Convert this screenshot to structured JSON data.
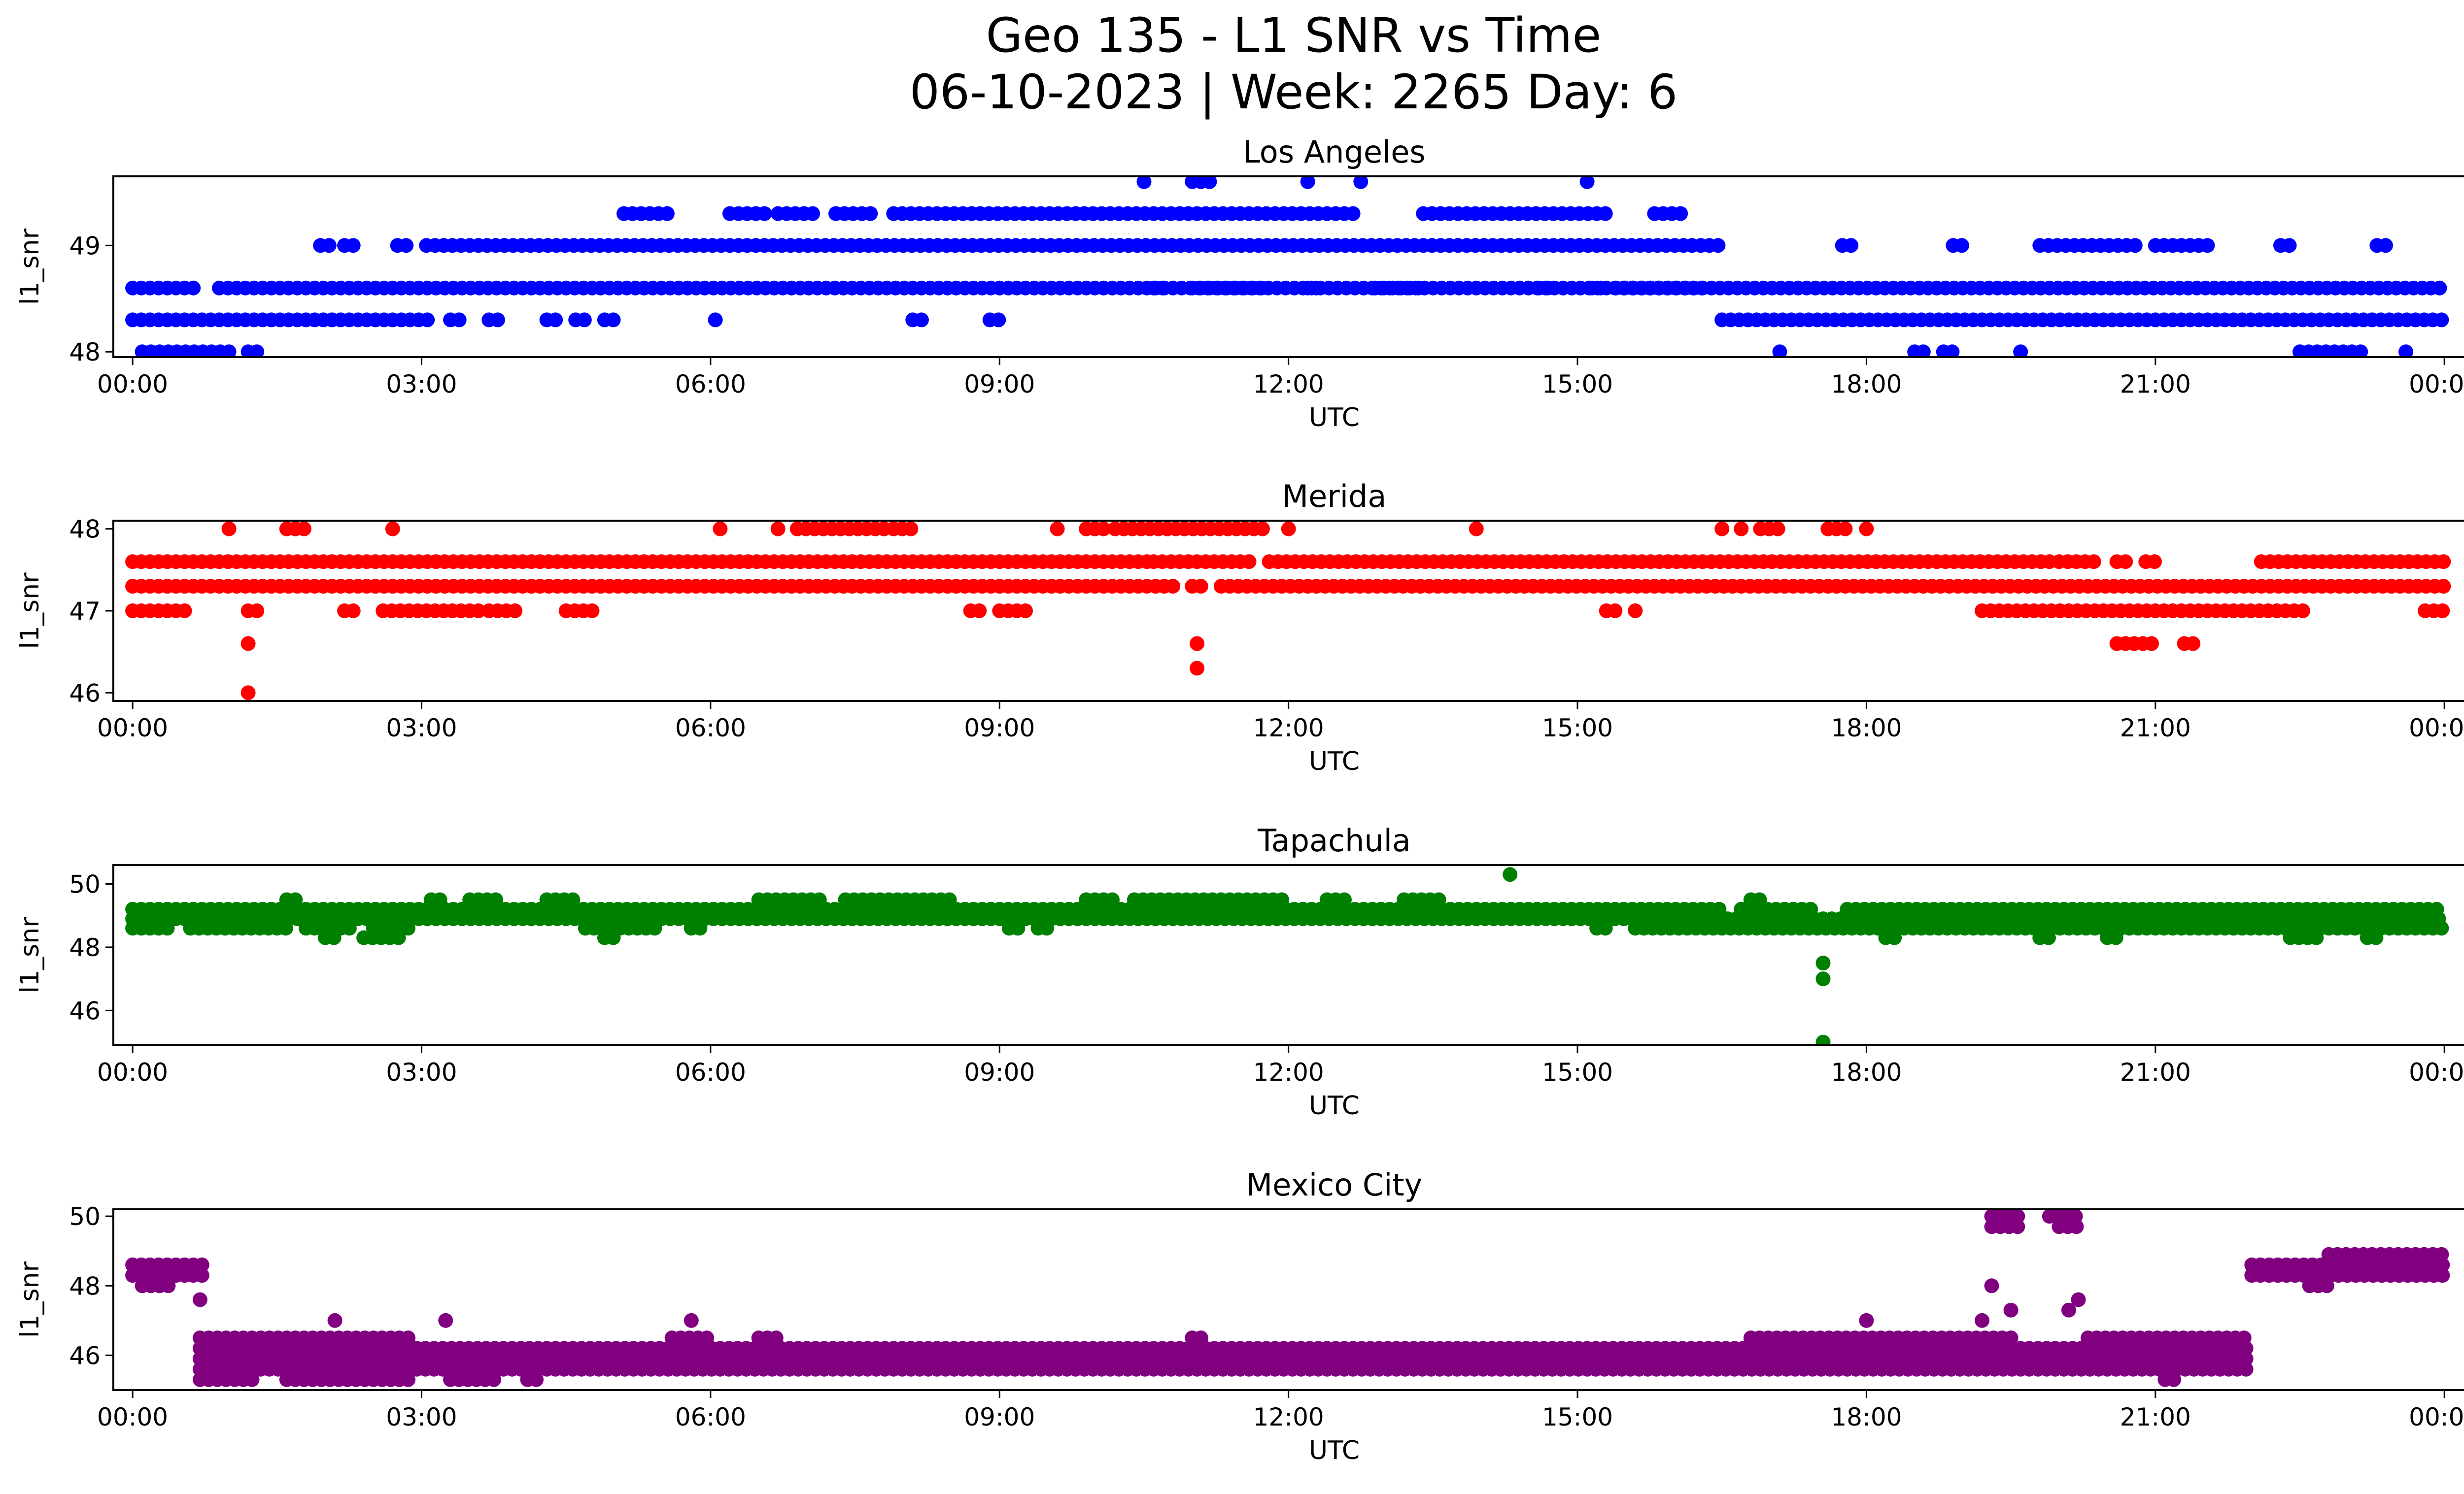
{
  "figure": {
    "title_line1": "Geo 135 - L1 SNR vs Time",
    "title_line2": "06-10-2023 | Week: 2265 Day: 6"
  },
  "chart_data": [
    {
      "type": "scatter",
      "title": "Los Angeles",
      "xlabel": "UTC",
      "ylabel": "l1_snr",
      "color": "#0000ff",
      "xlim": [
        "00:00",
        "24:00"
      ],
      "ylim": [
        47.95,
        49.65
      ],
      "x_ticks": [
        "00:00",
        "03:00",
        "06:00",
        "09:00",
        "12:00",
        "15:00",
        "18:00",
        "21:00",
        "00:00"
      ],
      "y_ticks": [
        48,
        49
      ],
      "bands": [
        {
          "y": 48.3,
          "segments": [
            [
              0.0,
              3.1
            ],
            [
              3.3,
              3.4
            ],
            [
              3.7,
              3.8
            ],
            [
              4.3,
              4.4
            ],
            [
              4.6,
              4.7
            ],
            [
              4.9,
              5.0
            ],
            [
              6.05,
              6.1
            ],
            [
              8.1,
              8.2
            ],
            [
              8.9,
              9.0
            ],
            [
              16.5,
              24.0
            ]
          ]
        },
        {
          "y": 48.6,
          "segments": [
            [
              0.0,
              0.7
            ],
            [
              0.9,
              16.3
            ],
            [
              10.6,
              10.7
            ],
            [
              11.0,
              11.8
            ],
            [
              12.2,
              12.3
            ],
            [
              12.9,
              13.4
            ],
            [
              14.6,
              14.7
            ],
            [
              15.15,
              15.25
            ],
            [
              15.4,
              24.0
            ]
          ]
        },
        {
          "y": 49.0,
          "segments": [
            [
              1.95,
              2.1
            ],
            [
              2.2,
              2.3
            ],
            [
              2.75,
              2.85
            ],
            [
              3.05,
              16.5
            ],
            [
              17.75,
              17.85
            ],
            [
              18.9,
              19.0
            ],
            [
              19.8,
              20.8
            ],
            [
              21.0,
              21.6
            ],
            [
              22.3,
              22.4
            ],
            [
              23.3,
              23.4
            ]
          ]
        },
        {
          "y": 49.3,
          "segments": [
            [
              5.1,
              5.6
            ],
            [
              6.2,
              6.6
            ],
            [
              6.7,
              7.1
            ],
            [
              7.3,
              7.7
            ],
            [
              7.9,
              12.7
            ],
            [
              13.4,
              15.3
            ],
            [
              15.8,
              16.1
            ]
          ]
        },
        {
          "y": 49.6,
          "segments": [
            [
              10.5,
              10.55
            ],
            [
              11.0,
              11.2
            ],
            [
              12.2,
              12.25
            ],
            [
              12.75,
              12.8
            ],
            [
              15.1,
              15.15
            ]
          ]
        },
        {
          "y": 48.0,
          "segments": [
            [
              0.1,
              1.0
            ],
            [
              1.2,
              1.3
            ],
            [
              17.1,
              17.15
            ],
            [
              18.5,
              18.6
            ],
            [
              18.8,
              18.9
            ],
            [
              19.6,
              19.65
            ],
            [
              22.5,
              23.2
            ],
            [
              23.6,
              23.65
            ]
          ]
        }
      ],
      "outliers": []
    },
    {
      "type": "scatter",
      "title": "Merida",
      "xlabel": "UTC",
      "ylabel": "l1_snr",
      "color": "#ff0000",
      "xlim": [
        "00:00",
        "24:00"
      ],
      "ylim": [
        45.9,
        48.1
      ],
      "x_ticks": [
        "00:00",
        "03:00",
        "06:00",
        "09:00",
        "12:00",
        "15:00",
        "18:00",
        "21:00",
        "00:00"
      ],
      "y_ticks": [
        46,
        47,
        48
      ],
      "bands": [
        {
          "y": 47.3,
          "segments": [
            [
              0.0,
              10.8
            ],
            [
              11.0,
              11.1
            ],
            [
              11.3,
              24.0
            ]
          ]
        },
        {
          "y": 47.6,
          "segments": [
            [
              0.0,
              10.6
            ],
            [
              10.6,
              11.6
            ],
            [
              11.8,
              19.9
            ],
            [
              20.0,
              20.4
            ],
            [
              20.6,
              20.7
            ],
            [
              20.9,
              21.0
            ],
            [
              22.1,
              24.0
            ]
          ]
        },
        {
          "y": 47.0,
          "segments": [
            [
              0.0,
              0.6
            ],
            [
              1.2,
              1.3
            ],
            [
              2.2,
              2.3
            ],
            [
              2.6,
              3.6
            ],
            [
              3.7,
              4.0
            ],
            [
              4.5,
              4.8
            ],
            [
              8.7,
              8.8
            ],
            [
              9.0,
              9.3
            ],
            [
              15.3,
              15.4
            ],
            [
              15.6,
              15.65
            ],
            [
              19.2,
              22.6
            ],
            [
              23.8,
              24.0
            ]
          ]
        },
        {
          "y": 48.0,
          "segments": [
            [
              1.0,
              1.05
            ],
            [
              1.6,
              1.8
            ],
            [
              2.7,
              2.75
            ],
            [
              6.1,
              6.15
            ],
            [
              6.7,
              6.75
            ],
            [
              6.9,
              7.8
            ],
            [
              7.9,
              8.1
            ],
            [
              9.6,
              9.65
            ],
            [
              9.9,
              10.1
            ],
            [
              10.2,
              11.8
            ],
            [
              12.0,
              12.05
            ],
            [
              13.95,
              14.0
            ],
            [
              16.5,
              16.55
            ],
            [
              16.7,
              16.75
            ],
            [
              16.9,
              17.1
            ],
            [
              17.6,
              17.8
            ],
            [
              18.0,
              18.05
            ]
          ]
        },
        {
          "y": 46.6,
          "segments": [
            [
              20.6,
              21.0
            ],
            [
              21.3,
              21.4
            ]
          ]
        }
      ],
      "outliers": [
        [
          1.2,
          46.6
        ],
        [
          1.2,
          46.0
        ],
        [
          11.05,
          46.6
        ],
        [
          11.05,
          46.3
        ]
      ]
    },
    {
      "type": "scatter",
      "title": "Tapachula",
      "xlabel": "UTC",
      "ylabel": "l1_snr",
      "color": "#008000",
      "xlim": [
        "00:00",
        "24:00"
      ],
      "ylim": [
        44.9,
        50.6
      ],
      "x_ticks": [
        "00:00",
        "03:00",
        "06:00",
        "09:00",
        "12:00",
        "15:00",
        "18:00",
        "21:00",
        "00:00"
      ],
      "y_ticks": [
        46,
        48,
        50
      ],
      "bands": [
        {
          "y": 49.2,
          "segments": [
            [
              0.0,
              16.5
            ],
            [
              16.7,
              17.5
            ],
            [
              17.8,
              24.0
            ]
          ]
        },
        {
          "y": 48.9,
          "segments": [
            [
              0.0,
              24.0
            ]
          ]
        },
        {
          "y": 48.6,
          "segments": [
            [
              0.0,
              0.4
            ],
            [
              0.6,
              1.6
            ],
            [
              1.8,
              2.3
            ],
            [
              2.5,
              2.9
            ],
            [
              4.7,
              5.5
            ],
            [
              5.8,
              5.9
            ],
            [
              9.1,
              9.2
            ],
            [
              9.4,
              9.5
            ],
            [
              15.2,
              15.3
            ],
            [
              15.6,
              24.0
            ]
          ]
        },
        {
          "y": 49.5,
          "segments": [
            [
              1.6,
              1.7
            ],
            [
              3.1,
              3.2
            ],
            [
              3.5,
              3.8
            ],
            [
              4.3,
              4.6
            ],
            [
              6.5,
              7.2
            ],
            [
              7.4,
              8.5
            ],
            [
              9.9,
              10.2
            ],
            [
              10.4,
              12.0
            ],
            [
              12.4,
              12.6
            ],
            [
              13.2,
              13.6
            ],
            [
              16.8,
              16.9
            ]
          ]
        },
        {
          "y": 48.3,
          "segments": [
            [
              2.0,
              2.1
            ],
            [
              2.4,
              2.8
            ],
            [
              4.9,
              5.0
            ],
            [
              18.2,
              18.3
            ],
            [
              19.8,
              19.9
            ],
            [
              20.5,
              20.6
            ],
            [
              22.4,
              22.7
            ],
            [
              23.2,
              23.3
            ]
          ]
        }
      ],
      "outliers": [
        [
          14.3,
          50.3
        ],
        [
          17.55,
          47.5
        ],
        [
          17.55,
          47.0
        ],
        [
          17.55,
          45.0
        ]
      ]
    },
    {
      "type": "scatter",
      "title": "Mexico City",
      "xlabel": "UTC",
      "ylabel": "l1_snr",
      "color": "#800080",
      "xlim": [
        "00:00",
        "24:00"
      ],
      "ylim": [
        45.0,
        50.2
      ],
      "x_ticks": [
        "00:00",
        "03:00",
        "06:00",
        "09:00",
        "12:00",
        "15:00",
        "18:00",
        "21:00",
        "00:00"
      ],
      "y_ticks": [
        46,
        48,
        50
      ],
      "bands": [
        {
          "y": 48.6,
          "segments": [
            [
              0.0,
              0.75
            ],
            [
              22.0,
              24.0
            ]
          ]
        },
        {
          "y": 48.3,
          "segments": [
            [
              0.0,
              0.75
            ],
            [
              22.0,
              24.0
            ]
          ]
        },
        {
          "y": 48.0,
          "segments": [
            [
              0.1,
              0.4
            ],
            [
              22.6,
              22.8
            ]
          ]
        },
        {
          "y": 48.9,
          "segments": [
            [
              22.8,
              24.0
            ]
          ]
        },
        {
          "y": 46.2,
          "segments": [
            [
              0.7,
              22.0
            ]
          ]
        },
        {
          "y": 45.9,
          "segments": [
            [
              0.7,
              22.0
            ]
          ]
        },
        {
          "y": 45.6,
          "segments": [
            [
              0.7,
              22.0
            ]
          ]
        },
        {
          "y": 46.5,
          "segments": [
            [
              0.7,
              2.9
            ],
            [
              5.6,
              6.0
            ],
            [
              6.5,
              6.7
            ],
            [
              11.0,
              11.1
            ],
            [
              16.8,
              19.5
            ],
            [
              20.3,
              22.0
            ]
          ]
        },
        {
          "y": 45.3,
          "segments": [
            [
              0.7,
              1.3
            ],
            [
              1.6,
              2.9
            ],
            [
              3.3,
              3.8
            ],
            [
              4.1,
              4.2
            ],
            [
              21.1,
              21.2
            ]
          ]
        },
        {
          "y": 50.0,
          "segments": [
            [
              19.3,
              19.6
            ],
            [
              19.9,
              20.2
            ]
          ]
        },
        {
          "y": 49.7,
          "segments": [
            [
              19.3,
              19.6
            ],
            [
              20.0,
              20.2
            ]
          ]
        }
      ],
      "outliers": [
        [
          0.7,
          47.6
        ],
        [
          2.1,
          47.0
        ],
        [
          3.25,
          47.0
        ],
        [
          5.8,
          47.0
        ],
        [
          18.0,
          47.0
        ],
        [
          19.3,
          48.0
        ],
        [
          19.2,
          47.0
        ],
        [
          19.5,
          47.3
        ],
        [
          20.1,
          47.3
        ],
        [
          20.2,
          47.6
        ]
      ]
    }
  ]
}
